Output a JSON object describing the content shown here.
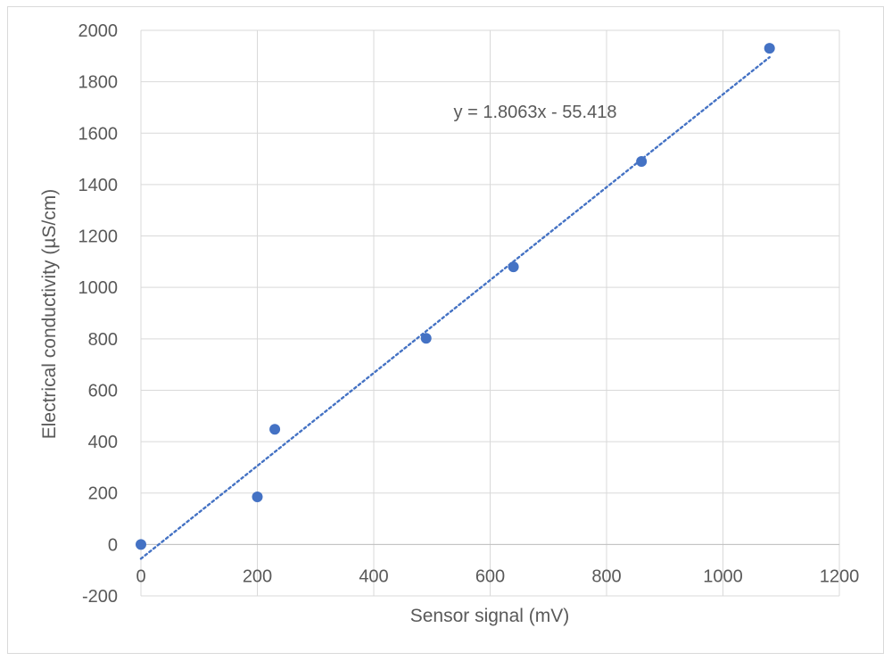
{
  "chart_data": {
    "type": "scatter",
    "title": "",
    "xlabel": "Sensor signal (mV)",
    "ylabel": "Electrical conductivity (µS/cm)",
    "xlim": [
      0,
      1200
    ],
    "ylim": [
      -200,
      2000
    ],
    "xticks": [
      "0",
      "200",
      "400",
      "600",
      "800",
      "1000",
      "1200"
    ],
    "yticks": [
      "-200",
      "0",
      "200",
      "400",
      "600",
      "800",
      "1000",
      "1200",
      "1400",
      "1600",
      "1800",
      "2000"
    ],
    "grid": true,
    "legend": "none",
    "series": [
      {
        "points": [
          {
            "x": 0,
            "y": 0
          },
          {
            "x": 200,
            "y": 185
          },
          {
            "x": 230,
            "y": 448
          },
          {
            "x": 490,
            "y": 802
          },
          {
            "x": 640,
            "y": 1080
          },
          {
            "x": 860,
            "y": 1490
          },
          {
            "x": 1080,
            "y": 1930
          }
        ],
        "color": "#4472c4"
      }
    ],
    "trendline": {
      "type": "linear",
      "slope": 1.8063,
      "intercept": -55.418,
      "x_range": [
        0,
        1080
      ],
      "style": "dotted",
      "color": "#4472c4",
      "label": "y = 1.8063x - 55.418"
    }
  }
}
